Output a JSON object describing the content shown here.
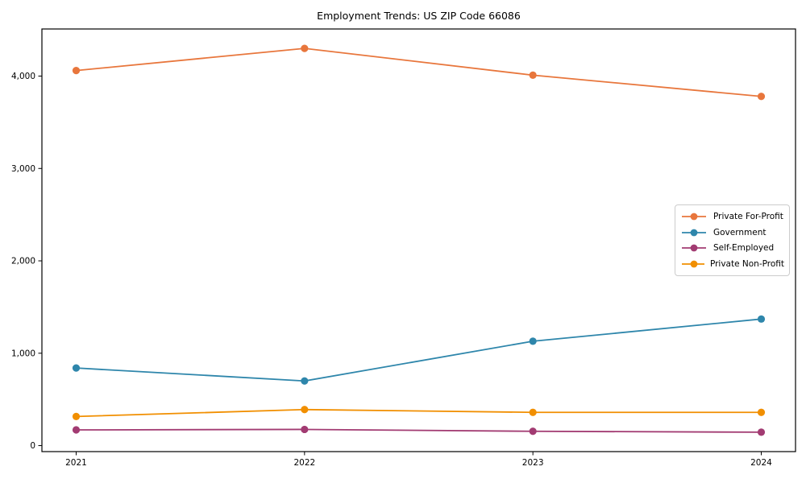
{
  "title": "Employment Trends: US ZIP Code 66086",
  "colors": {
    "axis": "#000000",
    "text": "#000000",
    "legend_border": "#cccccc",
    "background": "#ffffff"
  },
  "chart_data": {
    "type": "line",
    "title": "Employment Trends: US ZIP Code 66086",
    "x": [
      2021,
      2022,
      2023,
      2024
    ],
    "x_tick_labels": [
      "2021",
      "2022",
      "2023",
      "2024"
    ],
    "y_ticks": [
      0,
      1000,
      2000,
      3000,
      4000
    ],
    "y_tick_labels": [
      "0",
      "1,000",
      "2,000",
      "3,000",
      "4,000"
    ],
    "xlim": [
      2020.85,
      2024.15
    ],
    "ylim": [
      -65,
      4510
    ],
    "grid": false,
    "marker": "circle",
    "legend_position": "center right",
    "xlabel": "",
    "ylabel": "",
    "series": [
      {
        "name": "Private For-Profit",
        "color": "#E8763C",
        "values": [
          4060,
          4300,
          4010,
          3780
        ]
      },
      {
        "name": "Government",
        "color": "#2E86AB",
        "values": [
          840,
          700,
          1130,
          1370
        ]
      },
      {
        "name": "Self-Employed",
        "color": "#A23B72",
        "values": [
          170,
          175,
          155,
          145
        ]
      },
      {
        "name": "Private Non-Profit",
        "color": "#F18F01",
        "values": [
          315,
          390,
          360,
          360
        ]
      }
    ]
  }
}
